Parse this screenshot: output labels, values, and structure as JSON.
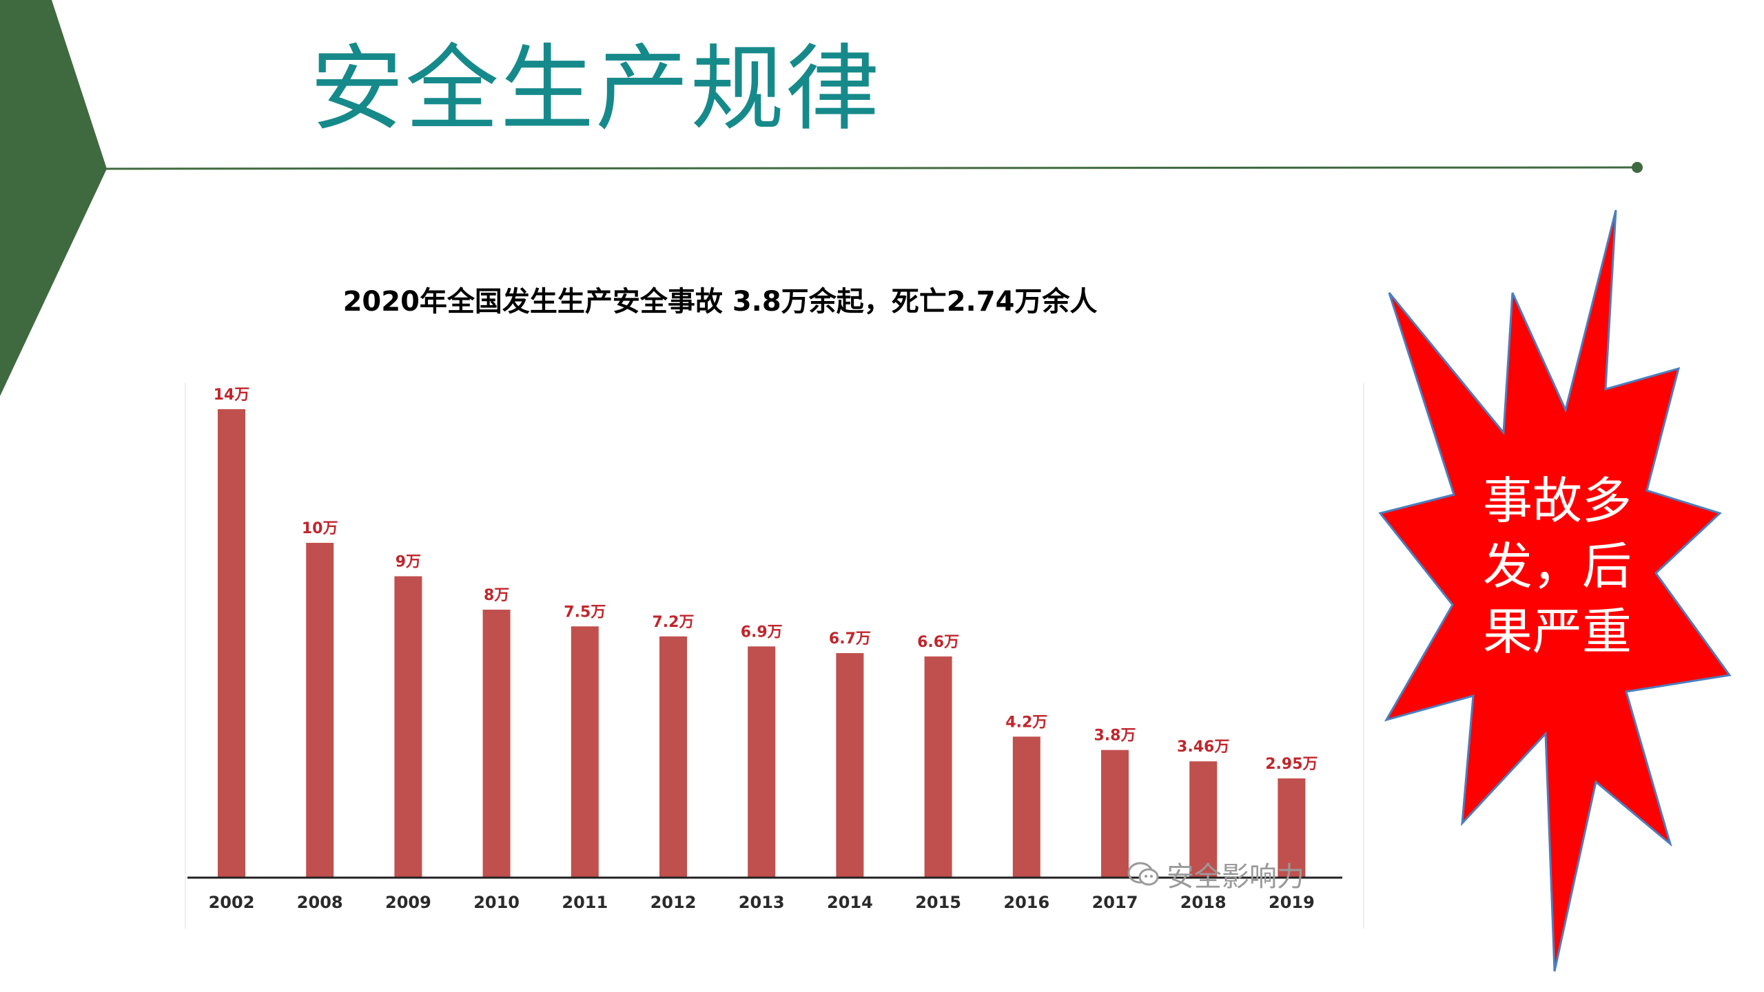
{
  "slide": {
    "title": "安全生产规律",
    "subtitle": "2020年全国发生生产安全事故 3.8万余起，死亡2.74万余人",
    "watermark": "安全影响力",
    "callout": {
      "lines": [
        "事故多",
        "发，后",
        "果严重"
      ]
    },
    "colors": {
      "title": "#168a8b",
      "chevron": "#3f6a3f",
      "rule": "#3f6a3f",
      "bar": "#c0504d",
      "bar_label": "#c0262c",
      "burst_fill": "#ff0000",
      "burst_stroke": "#4a7fc0"
    }
  },
  "chart_data": {
    "type": "bar",
    "categories": [
      "2002",
      "2008",
      "2009",
      "2010",
      "2011",
      "2012",
      "2013",
      "2014",
      "2015",
      "2016",
      "2017",
      "2018",
      "2019"
    ],
    "values": [
      14,
      10,
      9,
      8,
      7.5,
      7.2,
      6.9,
      6.7,
      6.6,
      4.2,
      3.8,
      3.46,
      2.95
    ],
    "data_labels": [
      "14万",
      "10万",
      "9万",
      "8万",
      "7.5万",
      "7.2万",
      "6.9万",
      "6.7万",
      "6.6万",
      "4.2万",
      "3.8万",
      "3.46万",
      "2.95万"
    ],
    "ylim": [
      0,
      14
    ],
    "grid": false,
    "legend": "none"
  }
}
